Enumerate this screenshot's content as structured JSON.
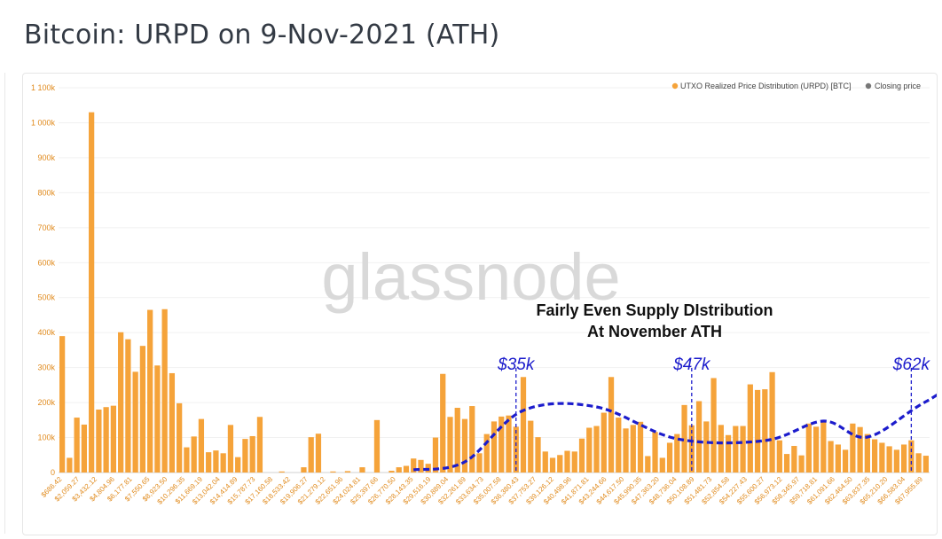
{
  "page": {
    "title": "Bitcoin: URPD on 9-Nov-2021 (ATH)"
  },
  "watermark": "glassnode",
  "annotations": {
    "headline": [
      "Fairly Even Supply DIstribution",
      "At November ATH"
    ],
    "markers": [
      {
        "label": "$35k",
        "category_index": 62
      },
      {
        "label": "$47k",
        "category_index": 86
      },
      {
        "label": "$62k",
        "category_index": 116
      }
    ],
    "curve_color": "#1c1ccc"
  },
  "colors": {
    "bar": "#f5a33a",
    "closing": "#777777",
    "axis_text": "#e08a1c"
  },
  "chart_data": {
    "type": "bar",
    "title": "Bitcoin: URPD on 9-Nov-2021 (ATH)",
    "xlabel": "",
    "ylabel": "",
    "ylim": [
      0,
      1100000
    ],
    "y_ticks": [
      0,
      100000,
      200000,
      300000,
      400000,
      500000,
      600000,
      700000,
      800000,
      900000,
      1000000,
      1100000
    ],
    "y_tick_labels": [
      "0",
      "100k",
      "200k",
      "300k",
      "400k",
      "500k",
      "600k",
      "700k",
      "800k",
      "900k",
      "1 000k",
      "1 100k"
    ],
    "x_tick_labels": [
      "$686.42",
      "$2,059.27",
      "$3,432.12",
      "$4,804.96",
      "$6,177.81",
      "$7,550.65",
      "$8,923.50",
      "$10,296.35",
      "$11,669.19",
      "$13,042.04",
      "$14,414.89",
      "$15,787.73",
      "$17,160.58",
      "$18,533.42",
      "$19,906.27",
      "$21,279.12",
      "$22,651.96",
      "$24,024.81",
      "$25,397.66",
      "$26,770.50",
      "$28,143.35",
      "$29,516.19",
      "$30,889.04",
      "$32,261.89",
      "$33,634.73",
      "$35,007.58",
      "$36,380.43",
      "$37,753.27",
      "$39,126.12",
      "$40,498.96",
      "$41,871.81",
      "$43,244.66",
      "$44,617.50",
      "$45,990.35",
      "$47,363.20",
      "$48,736.04",
      "$50,108.89",
      "$51,481.73",
      "$52,854.58",
      "$54,227.43",
      "$55,600.27",
      "$56,973.12",
      "$58,345.97",
      "$59,718.81",
      "$61,091.66",
      "$62,464.50",
      "$63,837.35",
      "$65,210.20",
      "$66,583.04",
      "$67,955.89"
    ],
    "legend": {
      "position": "top-right",
      "entries": [
        {
          "name": "UTXO Realized Price Distribution (URPD) [BTC]",
          "color": "#f5a33a"
        },
        {
          "name": "Closing price",
          "color": "#777777"
        }
      ]
    },
    "closing_price_index": 137,
    "values": [
      390000,
      42000,
      157000,
      137000,
      1030000,
      180000,
      187000,
      191000,
      401000,
      381000,
      288000,
      362000,
      465000,
      306000,
      467000,
      284000,
      198000,
      72000,
      103000,
      153000,
      58000,
      63000,
      55000,
      136000,
      44000,
      96000,
      104000,
      159000,
      0,
      0,
      3000,
      0,
      0,
      15000,
      101000,
      111000,
      0,
      3000,
      0,
      4000,
      0,
      15000,
      0,
      150000,
      0,
      5000,
      15000,
      19000,
      40000,
      36000,
      25000,
      100000,
      282000,
      159000,
      185000,
      153000,
      190000,
      55000,
      110000,
      146000,
      160000,
      163000,
      131000,
      273000,
      148000,
      101000,
      60000,
      42000,
      50000,
      62000,
      60000,
      97000,
      128000,
      133000,
      171000,
      273000,
      157000,
      126000,
      136000,
      145000,
      47000,
      116000,
      42000,
      85000,
      110000,
      193000,
      135000,
      204000,
      146000,
      270000,
      136000,
      107000,
      133000,
      133000,
      252000,
      236000,
      238000,
      287000,
      92000,
      53000,
      76000,
      49000,
      140000,
      131000,
      145000,
      90000,
      80000,
      65000,
      140000,
      130000,
      110000,
      95000,
      85000,
      75000,
      65000,
      80000,
      92000,
      55000,
      48000
    ]
  }
}
